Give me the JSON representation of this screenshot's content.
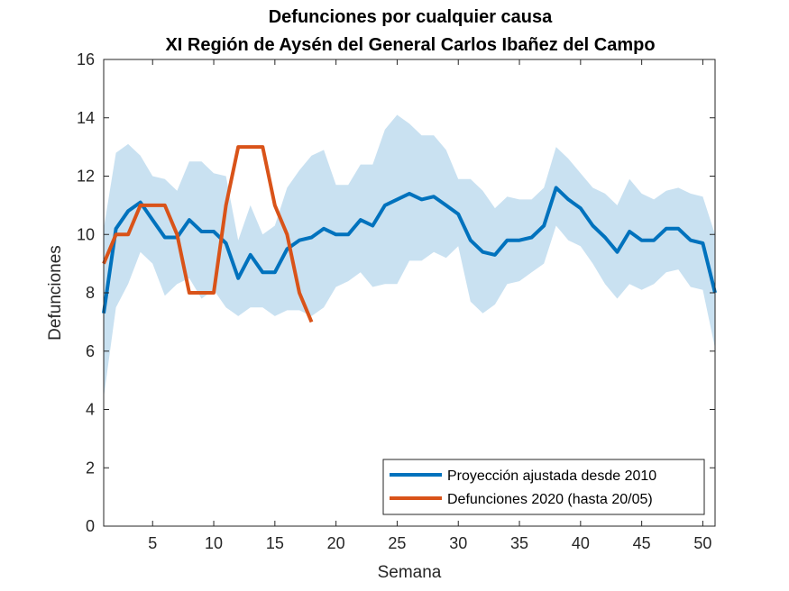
{
  "chart_data": {
    "type": "line",
    "title": "Defunciones por cualquier causa",
    "subtitle": "XI Región de Aysén del General Carlos Ibañez del Campo",
    "xlabel": "Semana",
    "ylabel": "Defunciones",
    "xlim": [
      1,
      51
    ],
    "ylim": [
      0,
      16
    ],
    "xticks": [
      5,
      10,
      15,
      20,
      25,
      30,
      35,
      40,
      45,
      50
    ],
    "yticks": [
      0,
      2,
      4,
      6,
      8,
      10,
      12,
      14,
      16
    ],
    "grid": false,
    "legend_position": "bottom-right",
    "band": {
      "color": "#c9e1f1",
      "x": [
        1,
        2,
        3,
        4,
        5,
        6,
        7,
        8,
        9,
        10,
        11,
        12,
        13,
        14,
        15,
        16,
        17,
        18,
        19,
        20,
        21,
        22,
        23,
        24,
        25,
        26,
        27,
        28,
        29,
        30,
        31,
        32,
        33,
        34,
        35,
        36,
        37,
        38,
        39,
        40,
        41,
        42,
        43,
        44,
        45,
        46,
        47,
        48,
        49,
        50,
        51
      ],
      "upper": [
        10.2,
        12.8,
        13.1,
        12.7,
        12.0,
        11.9,
        11.5,
        12.5,
        12.5,
        12.1,
        12.0,
        9.8,
        11.0,
        10.0,
        10.3,
        11.6,
        12.2,
        12.7,
        12.9,
        11.7,
        11.7,
        12.4,
        12.4,
        13.6,
        14.1,
        13.8,
        13.4,
        13.4,
        12.9,
        11.9,
        11.9,
        11.5,
        10.9,
        11.3,
        11.2,
        11.2,
        11.6,
        13.0,
        12.6,
        12.1,
        11.6,
        11.4,
        11.0,
        11.9,
        11.4,
        11.2,
        11.5,
        11.6,
        11.4,
        11.3,
        10.0
      ],
      "lower": [
        4.4,
        7.5,
        8.3,
        9.4,
        9.0,
        7.9,
        8.3,
        8.5,
        7.8,
        8.1,
        7.5,
        7.2,
        7.5,
        7.5,
        7.2,
        7.4,
        7.4,
        7.2,
        7.5,
        8.2,
        8.4,
        8.7,
        8.2,
        8.3,
        8.3,
        9.1,
        9.1,
        9.4,
        9.2,
        9.6,
        7.7,
        7.3,
        7.6,
        8.3,
        8.4,
        8.7,
        9.0,
        10.3,
        9.8,
        9.6,
        9.0,
        8.3,
        7.8,
        8.3,
        8.1,
        8.3,
        8.7,
        8.8,
        8.2,
        8.1,
        6.1
      ]
    },
    "series": [
      {
        "name": "Proyección ajustada desde 2010",
        "color": "#0072bd",
        "x": [
          1,
          2,
          3,
          4,
          5,
          6,
          7,
          8,
          9,
          10,
          11,
          12,
          13,
          14,
          15,
          16,
          17,
          18,
          19,
          20,
          21,
          22,
          23,
          24,
          25,
          26,
          27,
          28,
          29,
          30,
          31,
          32,
          33,
          34,
          35,
          36,
          37,
          38,
          39,
          40,
          41,
          42,
          43,
          44,
          45,
          46,
          47,
          48,
          49,
          50,
          51
        ],
        "values": [
          7.3,
          10.2,
          10.8,
          11.1,
          10.5,
          9.9,
          9.9,
          10.5,
          10.1,
          10.1,
          9.7,
          8.5,
          9.3,
          8.7,
          8.7,
          9.5,
          9.8,
          9.9,
          10.2,
          10.0,
          10.0,
          10.5,
          10.3,
          11.0,
          11.2,
          11.4,
          11.2,
          11.3,
          11.0,
          10.7,
          9.8,
          9.4,
          9.3,
          9.8,
          9.8,
          9.9,
          10.3,
          11.6,
          11.2,
          10.9,
          10.3,
          9.9,
          9.4,
          10.1,
          9.8,
          9.8,
          10.2,
          10.2,
          9.8,
          9.7,
          8.0
        ]
      },
      {
        "name": "Defunciones 2020 (hasta 20/05)",
        "color": "#d95319",
        "x": [
          1,
          2,
          3,
          4,
          5,
          6,
          7,
          8,
          9,
          10,
          11,
          12,
          13,
          14,
          15,
          16,
          17,
          18
        ],
        "values": [
          9,
          10,
          10,
          11,
          11,
          11,
          10,
          8,
          8,
          8,
          11,
          13,
          13,
          13,
          11,
          10,
          8,
          7
        ]
      }
    ]
  }
}
